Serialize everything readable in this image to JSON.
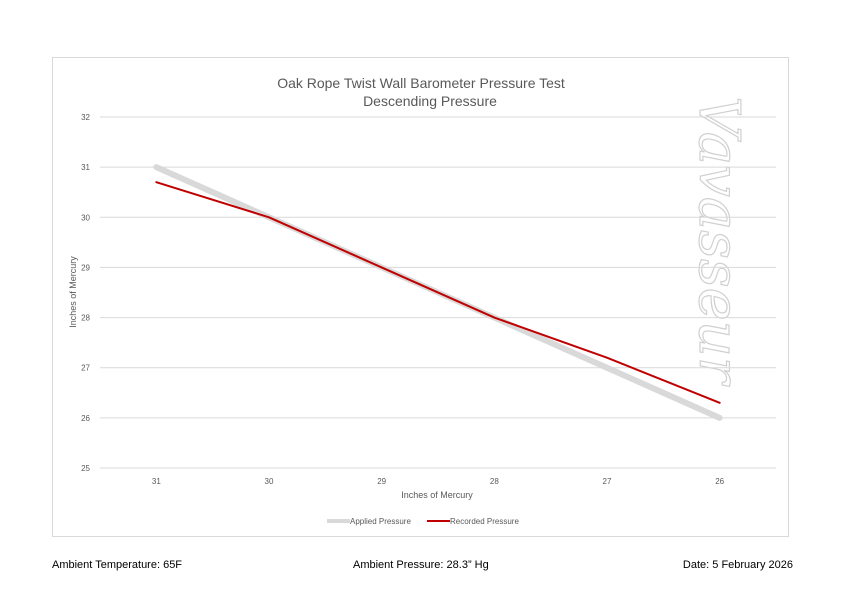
{
  "chart_data": {
    "type": "line",
    "title": "Oak Rope Twist Wall Barometer Pressure Test",
    "subtitle": "Descending Pressure",
    "xlabel": "Inches of Mercury",
    "ylabel": "Inches of Mercury",
    "categories": [
      "31",
      "30",
      "29",
      "28",
      "27",
      "26"
    ],
    "ylim": [
      25,
      32
    ],
    "yticks": [
      "25",
      "26",
      "27",
      "28",
      "29",
      "30",
      "31",
      "32"
    ],
    "grid": true,
    "legend_position": "bottom",
    "series": [
      {
        "name": "Applied Pressure",
        "values": [
          31,
          30,
          29,
          28,
          27,
          26
        ],
        "color": "#d9d9d9"
      },
      {
        "name": "Recorded Pressure",
        "values": [
          30.7,
          30.0,
          29.0,
          28.0,
          27.2,
          26.3
        ],
        "color": "#c00000"
      }
    ],
    "watermark": "Vavasseur"
  },
  "footer": {
    "temperature": "Ambient Temperature: 65F",
    "pressure": "Ambient Pressure: 28.3” Hg",
    "date": "Date: 5 February 2026"
  }
}
